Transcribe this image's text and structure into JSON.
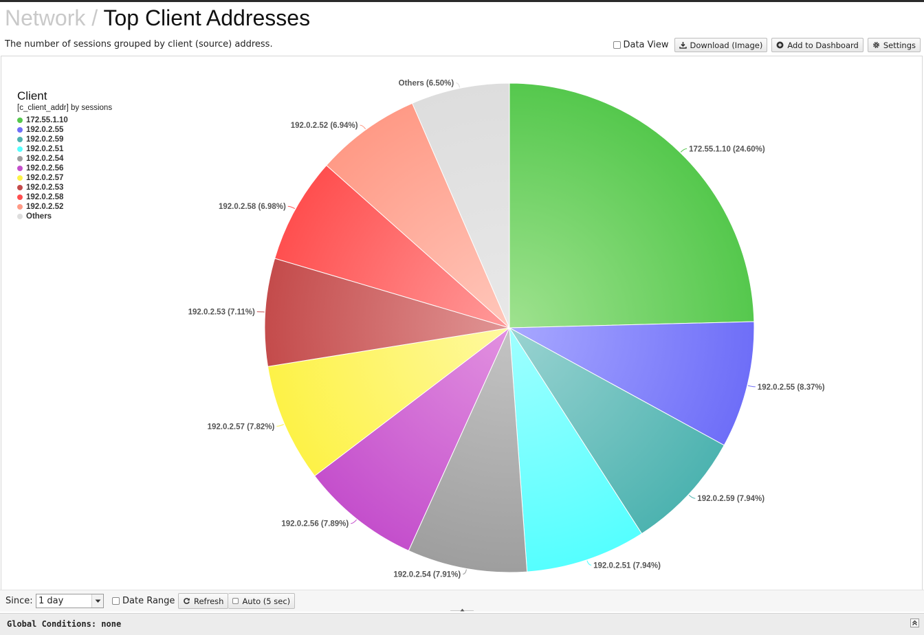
{
  "header": {
    "breadcrumb_parent": "Network",
    "separator": "/",
    "title": "Top Client Addresses",
    "subtitle": "The number of sessions grouped by client (source) address."
  },
  "toolbar": {
    "data_view_label": "Data View",
    "data_view_checked": false,
    "download_label": "Download (Image)",
    "add_dashboard_label": "Add to Dashboard",
    "settings_label": "Settings"
  },
  "legend": {
    "title": "Client",
    "subtitle": "[c_client_addr] by sessions"
  },
  "chart_data": {
    "type": "pie",
    "title": "Client",
    "subtitle": "[c_client_addr] by sessions",
    "legend_position": "top-left",
    "slices": [
      {
        "label": "172.55.1.10",
        "value": 24.6,
        "color": "#55c84d",
        "highlight": "#9fe28f"
      },
      {
        "label": "192.0.2.55",
        "value": 8.37,
        "color": "#6e6ef8",
        "highlight": "#a8a8ff"
      },
      {
        "label": "192.0.2.59",
        "value": 7.94,
        "color": "#4db3b0",
        "highlight": "#9ad3d1"
      },
      {
        "label": "192.0.2.51",
        "value": 7.94,
        "color": "#55ffff",
        "highlight": "#a0ffff"
      },
      {
        "label": "192.0.2.54",
        "value": 7.91,
        "color": "#9e9e9e",
        "highlight": "#c4c4c4"
      },
      {
        "label": "192.0.2.56",
        "value": 7.89,
        "color": "#c44fcc",
        "highlight": "#e291e0"
      },
      {
        "label": "192.0.2.57",
        "value": 7.82,
        "color": "#fdf247",
        "highlight": "#fff9a0"
      },
      {
        "label": "192.0.2.53",
        "value": 7.11,
        "color": "#c44b4b",
        "highlight": "#e09595"
      },
      {
        "label": "192.0.2.58",
        "value": 6.98,
        "color": "#ff4f4f",
        "highlight": "#ff9a9a"
      },
      {
        "label": "192.0.2.52",
        "value": 6.94,
        "color": "#ff9a86",
        "highlight": "#ffc7bb"
      },
      {
        "label": "Others",
        "value": 6.5,
        "color": "#dddddd",
        "highlight": "#e8e8e8"
      }
    ],
    "value_labels": [
      "172.55.1.10 (24.60%)",
      "192.0.2.55 (8.37%)",
      "192.0.2.59 (7.94%)",
      "192.0.2.51 (7.94%)",
      "192.0.2.54 (7.91%)",
      "192.0.2.56 (7.89%)",
      "192.0.2.57 (7.82%)",
      "192.0.2.53 (7.11%)",
      "192.0.2.58 (6.98%)",
      "192.0.2.52 (6.94%)",
      "Others (6.50%)"
    ]
  },
  "footer": {
    "since_label": "Since:",
    "since_value": "1 day",
    "date_range_label": "Date Range",
    "refresh_label": "Refresh",
    "auto_label": "Auto (5 sec)",
    "global_conditions": "Global Conditions: none"
  }
}
